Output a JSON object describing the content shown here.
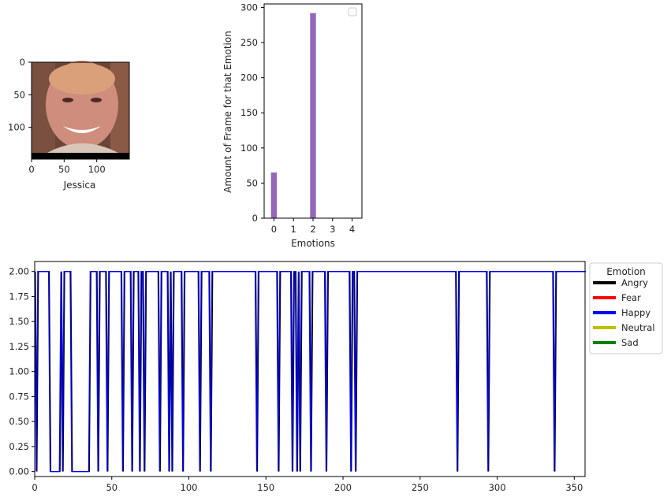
{
  "chart_data": [
    {
      "type": "image",
      "xlabel": "Jessica",
      "xticks": [
        0,
        50,
        100
      ],
      "yticks": [
        0,
        50,
        100
      ]
    },
    {
      "type": "bar",
      "xlabel": "Emotions",
      "ylabel": "Amount of Frame for that Emotion",
      "categories": [
        0,
        1,
        2,
        3,
        4
      ],
      "values": [
        65,
        0,
        292,
        0,
        0
      ],
      "ylim": [
        0,
        305
      ],
      "xticks": [
        "0",
        "1",
        "2",
        "3",
        "4"
      ],
      "yticks": [
        0,
        50,
        100,
        150,
        200,
        250,
        300
      ],
      "bar_color": "#9467bd",
      "legend": "top-right, empty"
    },
    {
      "type": "line",
      "xlim": [
        0,
        357
      ],
      "ylim": [
        -0.05,
        2.1
      ],
      "xticks": [
        0,
        50,
        100,
        150,
        200,
        250,
        300,
        350
      ],
      "yticks": [
        "0.00",
        "0.25",
        "0.50",
        "0.75",
        "1.00",
        "1.25",
        "1.50",
        "1.75",
        "2.00"
      ],
      "legend": {
        "title": "Emotion",
        "entries": [
          {
            "label": "Angry",
            "color": "#000000"
          },
          {
            "label": "Fear",
            "color": "#ff0000"
          },
          {
            "label": "Happy",
            "color": "#0000ff"
          },
          {
            "label": "Neutral",
            "color": "#bfbf00"
          },
          {
            "label": "Sad",
            "color": "#008000"
          }
        ]
      },
      "drop_frames": [
        1,
        10,
        11,
        12,
        13,
        14,
        15,
        16,
        18,
        24,
        25,
        26,
        27,
        28,
        29,
        30,
        31,
        32,
        33,
        34,
        35,
        41,
        47,
        57,
        63,
        68,
        71,
        81,
        87,
        89,
        96,
        107,
        114,
        144,
        158,
        167,
        170,
        172,
        179,
        189,
        205,
        208,
        274,
        294,
        337
      ],
      "high_value": 2,
      "low_value": 0
    }
  ]
}
